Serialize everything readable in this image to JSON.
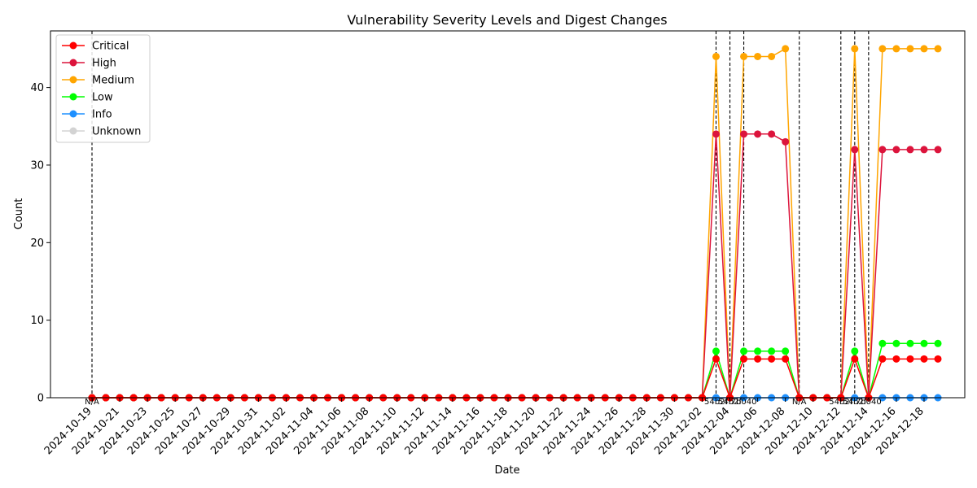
{
  "chart_data": {
    "type": "line",
    "title": "Vulnerability Severity Levels and Digest Changes",
    "xlabel": "Date",
    "ylabel": "Count",
    "ylim": [
      0,
      47.3
    ],
    "yticks": [
      0,
      10,
      20,
      30,
      40
    ],
    "start_date": "2024-10-19",
    "x_tick_labels": [
      "2024-10-19",
      "2024-10-21",
      "2024-10-23",
      "2024-10-25",
      "2024-10-27",
      "2024-10-29",
      "2024-10-31",
      "2024-11-02",
      "2024-11-04",
      "2024-11-06",
      "2024-11-08",
      "2024-11-10",
      "2024-11-12",
      "2024-11-14",
      "2024-11-16",
      "2024-11-18",
      "2024-11-20",
      "2024-11-22",
      "2024-11-24",
      "2024-11-26",
      "2024-11-28",
      "2024-11-30",
      "2024-12-02",
      "2024-12-04",
      "2024-12-06",
      "2024-12-08",
      "2024-12-10",
      "2024-12-12",
      "2024-12-14",
      "2024-12-16",
      "2024-12-18"
    ],
    "grid": false,
    "legend_position": "upper-left",
    "series": [
      {
        "name": "Critical",
        "color": "#ff0000",
        "values": [
          0,
          0,
          0,
          0,
          0,
          0,
          0,
          0,
          0,
          0,
          0,
          0,
          0,
          0,
          0,
          0,
          0,
          0,
          0,
          0,
          0,
          0,
          0,
          0,
          0,
          0,
          0,
          0,
          0,
          0,
          0,
          0,
          0,
          0,
          0,
          0,
          0,
          0,
          0,
          0,
          0,
          0,
          0,
          0,
          0,
          5,
          0,
          5,
          5,
          5,
          5,
          0,
          0,
          0,
          0,
          5,
          0,
          5,
          5,
          5,
          5,
          5
        ]
      },
      {
        "name": "High",
        "color": "#dc143c",
        "values": [
          0,
          0,
          0,
          0,
          0,
          0,
          0,
          0,
          0,
          0,
          0,
          0,
          0,
          0,
          0,
          0,
          0,
          0,
          0,
          0,
          0,
          0,
          0,
          0,
          0,
          0,
          0,
          0,
          0,
          0,
          0,
          0,
          0,
          0,
          0,
          0,
          0,
          0,
          0,
          0,
          0,
          0,
          0,
          0,
          0,
          34,
          0,
          34,
          34,
          34,
          33,
          0,
          0,
          0,
          0,
          32,
          0,
          32,
          32,
          32,
          32,
          32
        ]
      },
      {
        "name": "Medium",
        "color": "#ffa500",
        "values": [
          0,
          0,
          0,
          0,
          0,
          0,
          0,
          0,
          0,
          0,
          0,
          0,
          0,
          0,
          0,
          0,
          0,
          0,
          0,
          0,
          0,
          0,
          0,
          0,
          0,
          0,
          0,
          0,
          0,
          0,
          0,
          0,
          0,
          0,
          0,
          0,
          0,
          0,
          0,
          0,
          0,
          0,
          0,
          0,
          0,
          44,
          0,
          44,
          44,
          44,
          45,
          0,
          0,
          0,
          0,
          45,
          0,
          45,
          45,
          45,
          45,
          45
        ]
      },
      {
        "name": "Low",
        "color": "#00ff00",
        "values": [
          0,
          0,
          0,
          0,
          0,
          0,
          0,
          0,
          0,
          0,
          0,
          0,
          0,
          0,
          0,
          0,
          0,
          0,
          0,
          0,
          0,
          0,
          0,
          0,
          0,
          0,
          0,
          0,
          0,
          0,
          0,
          0,
          0,
          0,
          0,
          0,
          0,
          0,
          0,
          0,
          0,
          0,
          0,
          0,
          0,
          6,
          0,
          6,
          6,
          6,
          6,
          0,
          0,
          0,
          0,
          6,
          0,
          7,
          7,
          7,
          7,
          7
        ]
      },
      {
        "name": "Info",
        "color": "#1e90ff",
        "values": [
          0,
          0,
          0,
          0,
          0,
          0,
          0,
          0,
          0,
          0,
          0,
          0,
          0,
          0,
          0,
          0,
          0,
          0,
          0,
          0,
          0,
          0,
          0,
          0,
          0,
          0,
          0,
          0,
          0,
          0,
          0,
          0,
          0,
          0,
          0,
          0,
          0,
          0,
          0,
          0,
          0,
          0,
          0,
          0,
          0,
          0,
          0,
          0,
          0,
          0,
          0,
          0,
          0,
          0,
          0,
          0,
          0,
          0,
          0,
          0,
          0,
          0
        ]
      },
      {
        "name": "Unknown",
        "color": "#d3d3d3",
        "values": [
          0,
          0,
          0,
          0,
          0,
          0,
          0,
          0,
          0,
          0,
          0,
          0,
          0,
          0,
          0,
          0,
          0,
          0,
          0,
          0,
          0,
          0,
          0,
          0,
          0,
          0,
          0,
          0,
          0,
          0,
          0,
          0,
          0,
          0,
          0,
          0,
          0,
          0,
          0,
          0,
          0,
          0,
          0,
          0,
          0,
          0,
          0,
          0,
          0,
          0,
          0,
          0,
          0,
          0,
          0,
          0,
          0,
          0,
          0,
          0,
          0,
          0
        ]
      }
    ],
    "digest_changes": [
      {
        "date": "2024-10-19",
        "label": "N/A"
      },
      {
        "date": "2024-12-03",
        "label": "54b2f"
      },
      {
        "date": "2024-12-04",
        "label": "54b2f"
      },
      {
        "date": "2024-12-05",
        "label": "7b040"
      },
      {
        "date": "2024-12-09",
        "label": "N/A"
      },
      {
        "date": "2024-12-12",
        "label": "54b2f"
      },
      {
        "date": "2024-12-13",
        "label": "54b2f"
      },
      {
        "date": "2024-12-14",
        "label": "7b040"
      }
    ]
  }
}
